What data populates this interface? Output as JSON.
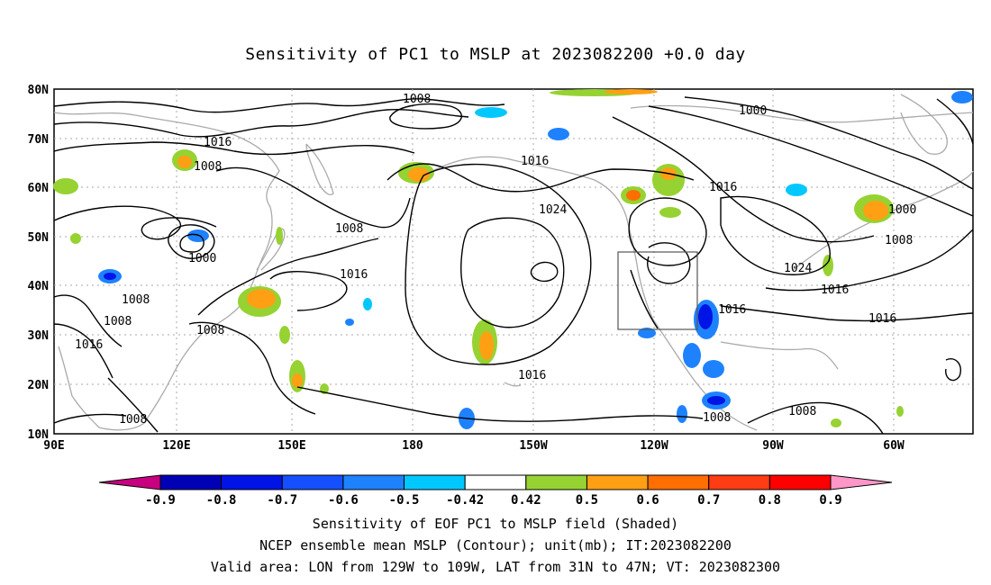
{
  "title": "Sensitivity of PC1 to MSLP at 2023082200 +0.0 day",
  "lat_labels": [
    "80N",
    "70N",
    "60N",
    "50N",
    "40N",
    "30N",
    "20N",
    "10N"
  ],
  "lon_labels": [
    "90E",
    "120E",
    "150E",
    "180",
    "150W",
    "120W",
    "90W",
    "60W"
  ],
  "colorbar": {
    "tick_labels": [
      "-0.9",
      "-0.8",
      "-0.7",
      "-0.6",
      "-0.5",
      "-0.42",
      "0.42",
      "0.5",
      "0.6",
      "0.7",
      "0.8",
      "0.9"
    ],
    "colors": [
      "#c8007f",
      "#0000b4",
      "#0014e6",
      "#1450ff",
      "#1e82ff",
      "#00c8ff",
      "#ffffff",
      "#96d232",
      "#ffa014",
      "#ff6e00",
      "#ff3c14",
      "#ff0000",
      "#ff96c8"
    ]
  },
  "contour_labels": [
    "1008",
    "1016",
    "1008",
    "1000",
    "1008",
    "1008",
    "1016",
    "1008",
    "1008",
    "1016",
    "1024",
    "1016",
    "1000",
    "1016",
    "1000",
    "1008",
    "1024",
    "1016",
    "1016",
    "1016",
    "1008",
    "1008",
    "1008"
  ],
  "captions": {
    "line1": "Sensitivity of EOF PC1 to MSLP field (Shaded)",
    "line2": "NCEP ensemble mean MSLP (Contour); unit(mb); IT:2023082200",
    "line3": "Valid area: LON from 129W to 109W, LAT from 31N to 47N; VT: 2023082300"
  },
  "valid_area": {
    "lon_min": -129,
    "lon_max": -109,
    "lat_min": 31,
    "lat_max": 47
  },
  "map_extent": {
    "lon_min": 90,
    "lon_max": 310,
    "lat_min": 10,
    "lat_max": 80
  }
}
